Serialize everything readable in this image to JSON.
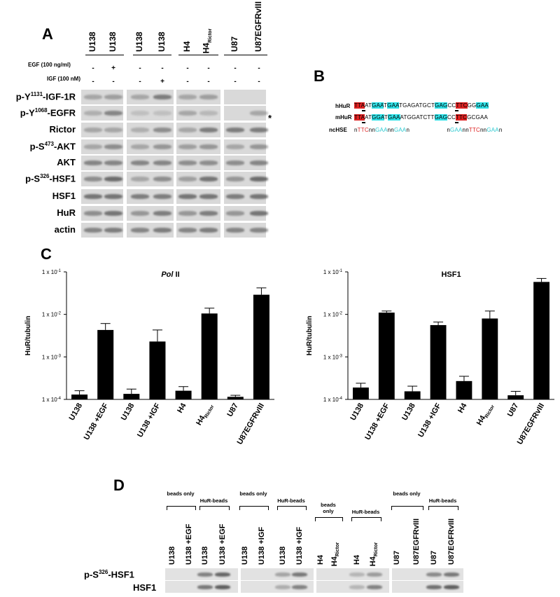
{
  "panelA": {
    "letter": "A",
    "lanes": [
      "U138",
      "U138",
      "U138",
      "U138",
      "H4",
      "H4",
      "U87",
      "U87EGFRvIII"
    ],
    "lane_subscripts": [
      "",
      "",
      "",
      "",
      "",
      "Rictor",
      "",
      ""
    ],
    "treat1_label": "EGF (100 ng/ml)",
    "treat1_signs": [
      "-",
      "+",
      "-",
      "-",
      "-",
      "-",
      "-",
      "-"
    ],
    "treat2_label": "IGF (100 nM)",
    "treat2_signs": [
      "-",
      "-",
      "-",
      "+",
      "-",
      "-",
      "-",
      "-"
    ],
    "rows": [
      {
        "pre": "p-Y",
        "sup": "1131",
        "post": "-IGF-1R"
      },
      {
        "pre": "p-Y",
        "sup": "1068",
        "post": "-EGFR"
      },
      {
        "pre": "Rictor",
        "sup": "",
        "post": ""
      },
      {
        "pre": "p-S",
        "sup": "473",
        "post": "-AKT"
      },
      {
        "pre": "AKT",
        "sup": "",
        "post": ""
      },
      {
        "pre": "p-S",
        "sup": "326",
        "post": "-HSF1"
      },
      {
        "pre": "HSF1",
        "sup": "",
        "post": ""
      },
      {
        "pre": "HuR",
        "sup": "",
        "post": ""
      },
      {
        "pre": "actin",
        "sup": "",
        "post": ""
      }
    ],
    "asterisk": "*"
  },
  "panelB": {
    "letter": "B",
    "h_label": "hHuR",
    "m_label": "mHuR",
    "nc_label": "ncHSE"
  },
  "panelC": {
    "letter": "C"
  },
  "chart_data": [
    {
      "type": "bar",
      "title": "Pol II",
      "ylabel": "HuR/tubulin",
      "yscale": "log",
      "ylim": [
        0.0001,
        0.1
      ],
      "yticks": [
        "1 x 10-4",
        "1 x 10-3",
        "1 x 10-2",
        "1 x 10-1"
      ],
      "categories": [
        "U138",
        "U138 +EGF",
        "U138",
        "U138 +IGF",
        "H4",
        "H4Rictor",
        "U87",
        "U87EGFRvIII"
      ],
      "values": [
        0.00013,
        0.0043,
        0.000135,
        0.0023,
        0.00016,
        0.0105,
        0.000115,
        0.029
      ],
      "errors": [
        3e-05,
        0.0018,
        4e-05,
        0.002,
        4e-05,
        0.0035,
        1e-05,
        0.013
      ]
    },
    {
      "type": "bar",
      "title": "HSF1",
      "ylabel": "HuR/tubulin",
      "yscale": "log",
      "ylim": [
        0.0001,
        0.1
      ],
      "yticks": [
        "1 x 10-4",
        "1 x 10-3",
        "1 x 10-2",
        "1 x 10-1"
      ],
      "categories": [
        "U138",
        "U138 +EGF",
        "U138",
        "U138 +IGF",
        "H4",
        "H4Rictor",
        "U87",
        "U87EGFRvIII"
      ],
      "values": [
        0.00019,
        0.011,
        0.000155,
        0.0056,
        0.00027,
        0.008,
        0.000125,
        0.058
      ],
      "errors": [
        5e-05,
        0.001,
        5e-05,
        0.001,
        8e-05,
        0.004,
        3e-05,
        0.012
      ]
    }
  ],
  "panelD": {
    "letter": "D",
    "groups": [
      "beads only",
      "HuR-beads",
      "beads only",
      "HuR-beads",
      "beads only",
      "HuR-beads",
      "beads only",
      "HuR-beads"
    ],
    "lanes": [
      "U138",
      "U138 +EGF",
      "U138",
      "U138 +EGF",
      "U138",
      "U138 +IGF",
      "U138",
      "U138 +IGF",
      "H4",
      "H4",
      "H4",
      "H4",
      "U87",
      "U87EGFRvIII",
      "U87",
      "U87EGFRvIII"
    ],
    "lane_subscripts": [
      "",
      "",
      "",
      "",
      "",
      "",
      "",
      "",
      "",
      "Rictor",
      "",
      "Rictor",
      "",
      "",
      "",
      ""
    ],
    "row1": {
      "pre": "p-S",
      "sup": "326",
      "post": "-HSF1"
    },
    "row2": "HSF1"
  }
}
